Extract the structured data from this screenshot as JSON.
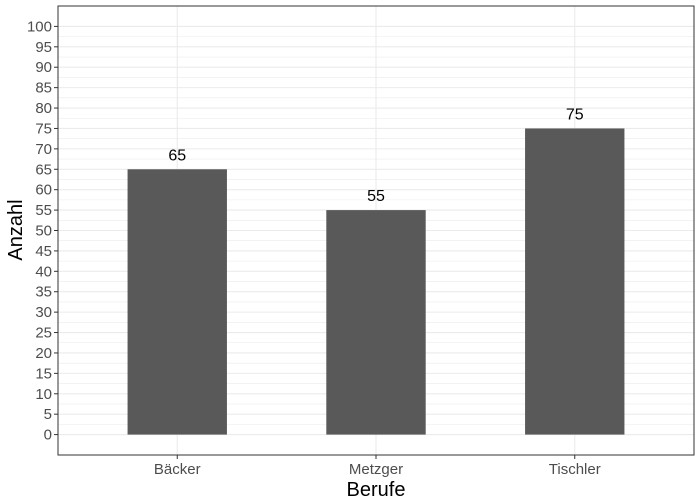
{
  "chart_data": {
    "type": "bar",
    "categories": [
      "Bäcker",
      "Metzger",
      "Tischler"
    ],
    "values": [
      65,
      55,
      75
    ],
    "data_labels": [
      "65",
      "55",
      "75"
    ],
    "title": "",
    "xlabel": "Berufe",
    "ylabel": "Anzahl",
    "ylim": [
      -5,
      105
    ],
    "yticks": [
      0,
      5,
      10,
      15,
      20,
      25,
      30,
      35,
      40,
      45,
      50,
      55,
      60,
      65,
      70,
      75,
      80,
      85,
      90,
      95,
      100
    ],
    "ytick_labels": [
      "0",
      "5",
      "10",
      "15",
      "20",
      "25",
      "30",
      "35",
      "40",
      "45",
      "50",
      "55",
      "60",
      "65",
      "70",
      "75",
      "80",
      "85",
      "90",
      "95",
      "100"
    ],
    "grid": true,
    "legend": "none",
    "colors": {
      "bar": "#595959",
      "grid": "#ebebeb",
      "panel_border": "#333333"
    }
  }
}
